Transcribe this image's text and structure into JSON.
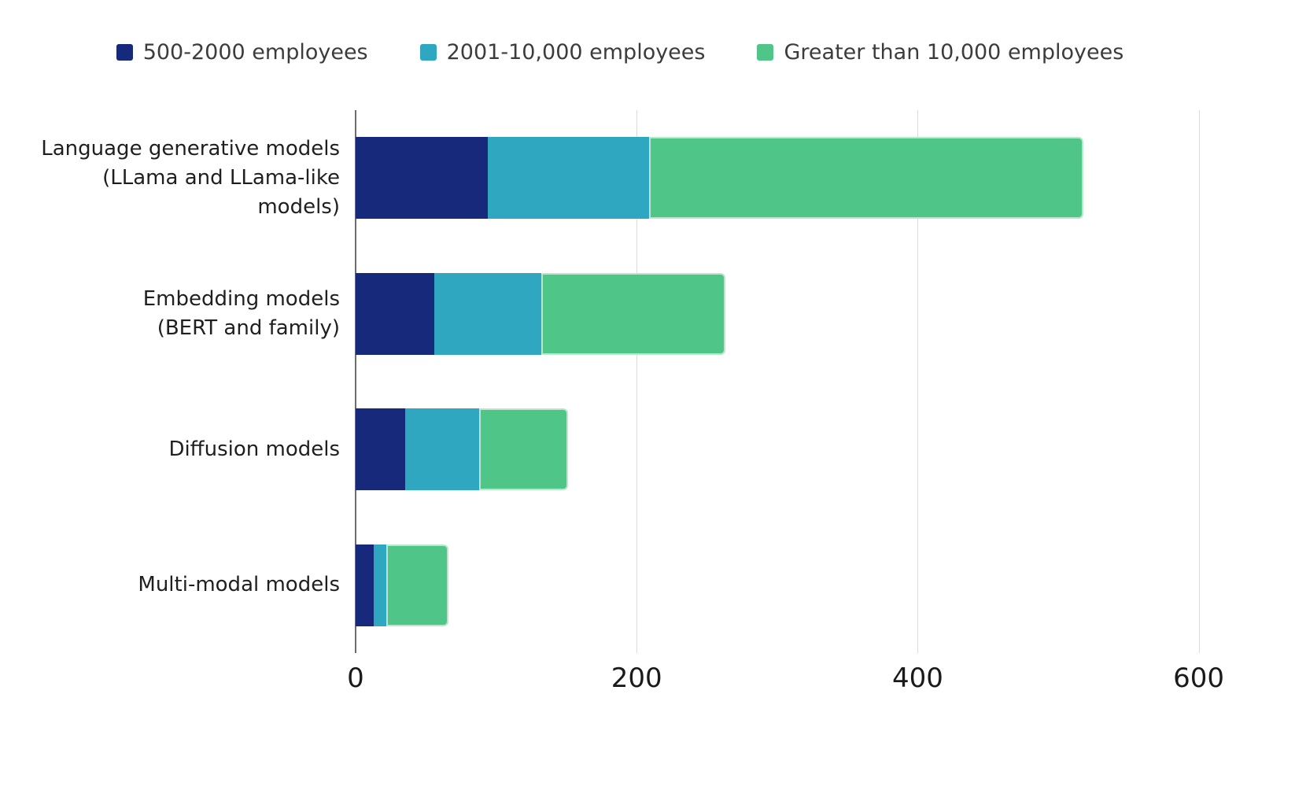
{
  "chart_data": {
    "type": "bar",
    "orientation": "horizontal",
    "stacked": true,
    "title": "",
    "xlabel": "",
    "ylabel": "",
    "categories": [
      "Language generative models\n(LLama and LLama-like\nmodels)",
      "Embedding models\n(BERT and family)",
      "Diffusion models",
      "Multi-modal models"
    ],
    "series": [
      {
        "name": "500-2000 employees",
        "color": "#16297b",
        "values": [
          94,
          56,
          35,
          13
        ]
      },
      {
        "name": "2001-10,000 employees",
        "color": "#2fa7c1",
        "values": [
          115,
          76,
          53,
          9
        ]
      },
      {
        "name": "Greater than 10,000 employees",
        "color": "#4fc687",
        "values": [
          309,
          131,
          63,
          44
        ]
      }
    ],
    "stack_totals": [
      518,
      263,
      151,
      66
    ],
    "x_ticks": [
      0,
      200,
      400,
      600
    ],
    "xlim": [
      0,
      631
    ],
    "grid": true,
    "legend_position": "top",
    "colors": {
      "gridline": "#dcdcdc",
      "axis_line": "#6e6e6e",
      "tick_text": "#1a1a1a",
      "category_text": "#1f1f1f",
      "legend_text": "#3c3c3c",
      "background": "#ffffff"
    }
  }
}
